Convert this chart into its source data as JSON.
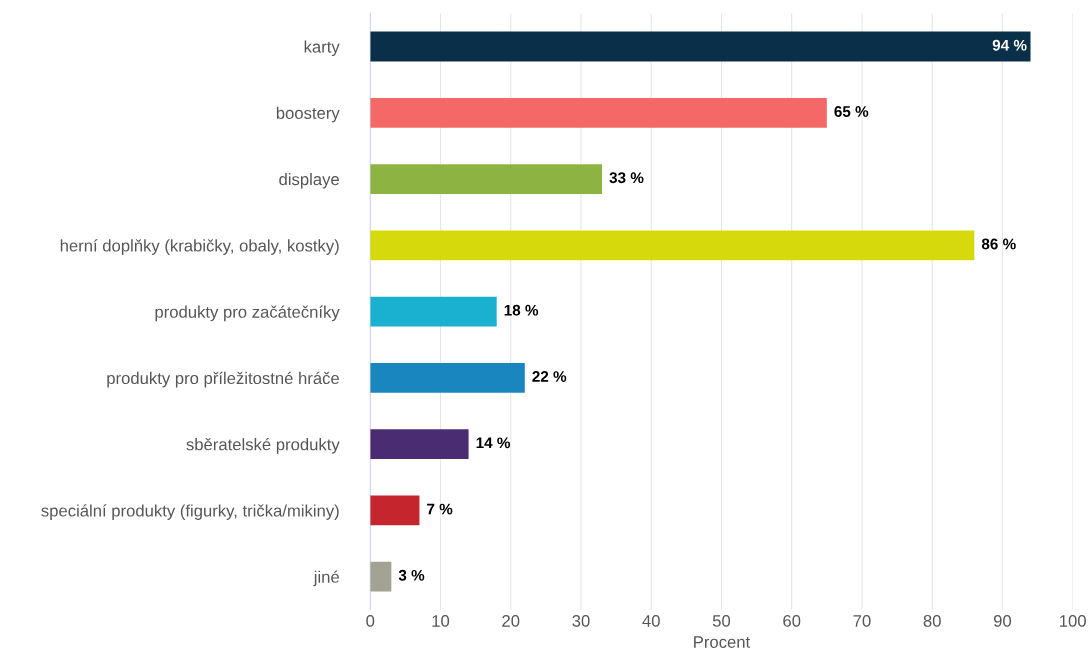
{
  "chart_data": {
    "type": "bar",
    "orientation": "horizontal",
    "xlabel": "Procent",
    "categories": [
      "karty",
      "boostery",
      "displaye",
      "herní doplňky (krabičky, obaly, kostky)",
      "produkty pro začátečníky",
      "produkty pro příležitostné hráče",
      "sběratelské produkty",
      "speciální produkty (figurky, trička/mikiny)",
      "jiné"
    ],
    "values": [
      94,
      65,
      33,
      86,
      18,
      22,
      14,
      7,
      3
    ],
    "value_labels": [
      "94 %",
      "65 %",
      "33 %",
      "86 %",
      "18 %",
      "22 %",
      "14 %",
      "7 %",
      "3 %"
    ],
    "colors": [
      "#0a3049",
      "#f56868",
      "#8db443",
      "#d6da0c",
      "#1ab0d0",
      "#1a86bf",
      "#4a2c72",
      "#c5262e",
      "#a3a393"
    ],
    "xlim": [
      0,
      100
    ],
    "xticks": [
      0,
      10,
      20,
      30,
      40,
      50,
      60,
      70,
      80,
      90,
      100
    ],
    "grid": "x",
    "legend": false
  }
}
